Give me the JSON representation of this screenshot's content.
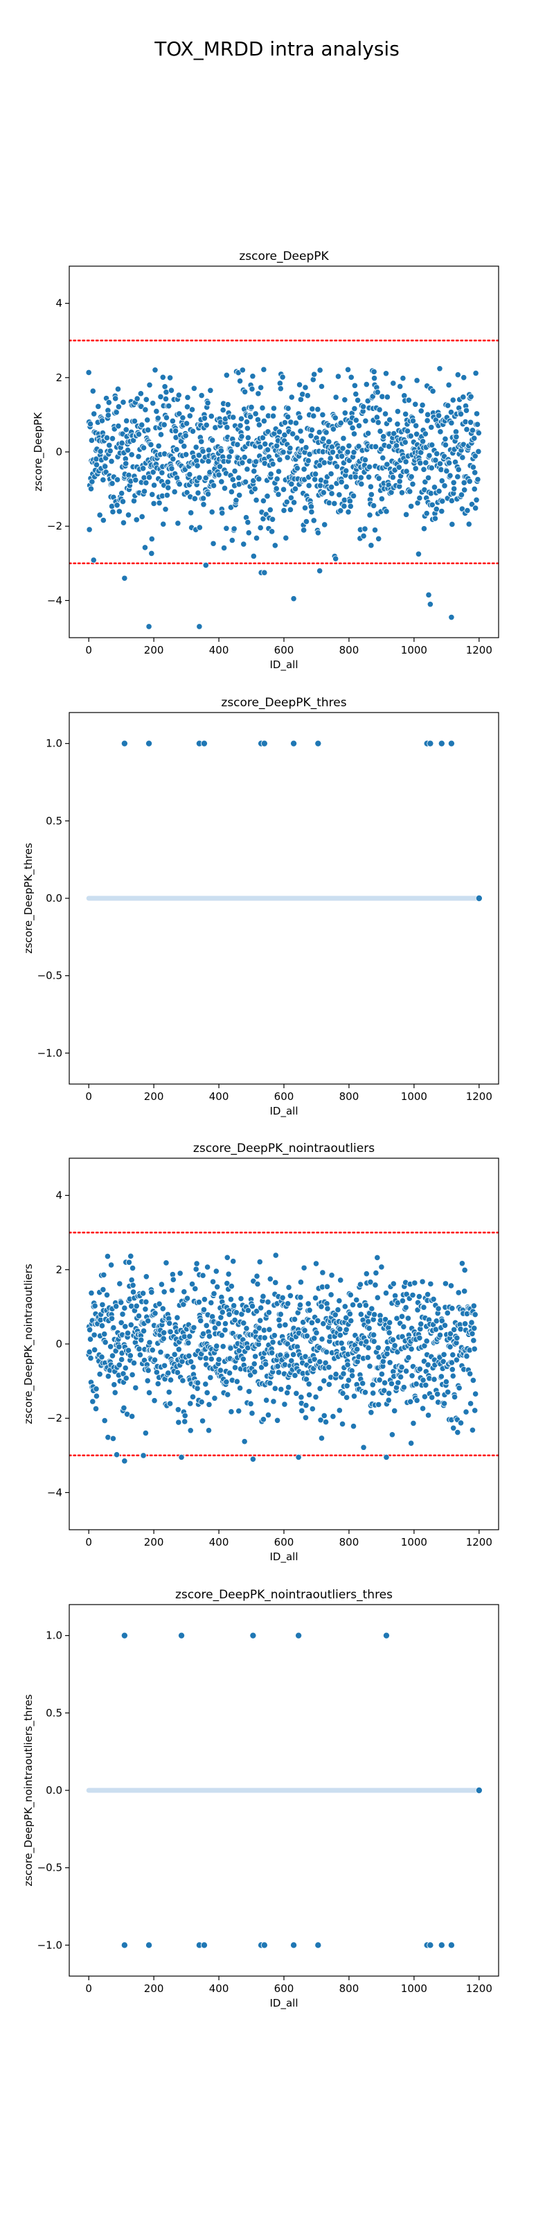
{
  "figure": {
    "suptitle": "TOX_MRDD intra analysis"
  },
  "colors": {
    "points": "#1f77b4",
    "threshold_line": "#ff0000",
    "zero_band": "#c6dbef"
  },
  "chart_data": [
    {
      "type": "scatter",
      "title": "zscore_DeepPK",
      "xlabel": "ID_all",
      "ylabel": "zscore_DeepPK",
      "xlim": [
        -60,
        1260
      ],
      "ylim": [
        -5,
        5
      ],
      "xticks": [
        0,
        200,
        400,
        600,
        800,
        1000,
        1200
      ],
      "yticks": [
        -4,
        -2,
        0,
        2,
        4
      ],
      "ytick_labels": [
        "−4",
        "−2",
        "0",
        "2",
        "4"
      ],
      "hlines": [
        3,
        -3
      ],
      "n_points": 1200,
      "distribution": {
        "center": 0,
        "spread": 1,
        "min": -3,
        "max": 2.3
      },
      "outliers": [
        {
          "x": 110,
          "y": -3.4
        },
        {
          "x": 185,
          "y": -4.7
        },
        {
          "x": 340,
          "y": -4.7
        },
        {
          "x": 360,
          "y": -3.05
        },
        {
          "x": 530,
          "y": -3.25
        },
        {
          "x": 540,
          "y": -3.25
        },
        {
          "x": 630,
          "y": -3.95
        },
        {
          "x": 710,
          "y": -3.2
        },
        {
          "x": 1045,
          "y": -3.85
        },
        {
          "x": 1050,
          "y": -4.1
        },
        {
          "x": 1115,
          "y": -4.45
        }
      ]
    },
    {
      "type": "scatter",
      "title": "zscore_DeepPK_thres",
      "xlabel": "ID_all",
      "ylabel": "zscore_DeepPK_thres",
      "xlim": [
        -60,
        1260
      ],
      "ylim": [
        -1.2,
        1.2
      ],
      "xticks": [
        0,
        200,
        400,
        600,
        800,
        1000,
        1200
      ],
      "yticks": [
        -1.0,
        -0.5,
        0.0,
        0.5,
        1.0
      ],
      "ytick_labels": [
        "−1.0",
        "−0.5",
        "0.0",
        "0.5",
        "1.0"
      ],
      "band_y": 0,
      "band_x_range": [
        0,
        1200
      ],
      "points": [
        {
          "x": 110,
          "y": 1
        },
        {
          "x": 185,
          "y": 1
        },
        {
          "x": 340,
          "y": 1
        },
        {
          "x": 355,
          "y": 1
        },
        {
          "x": 530,
          "y": 1
        },
        {
          "x": 540,
          "y": 1
        },
        {
          "x": 630,
          "y": 1
        },
        {
          "x": 705,
          "y": 1
        },
        {
          "x": 1040,
          "y": 1
        },
        {
          "x": 1050,
          "y": 1
        },
        {
          "x": 1085,
          "y": 1
        },
        {
          "x": 1115,
          "y": 1
        },
        {
          "x": 1200,
          "y": 0
        }
      ]
    },
    {
      "type": "scatter",
      "title": "zscore_DeepPK_nointraoutliers",
      "xlabel": "ID_all",
      "ylabel": "zscore_DeepPK_nointraoutliers",
      "xlim": [
        -60,
        1260
      ],
      "ylim": [
        -5,
        5
      ],
      "xticks": [
        0,
        200,
        400,
        600,
        800,
        1000,
        1200
      ],
      "yticks": [
        -4,
        -2,
        0,
        2,
        4
      ],
      "ytick_labels": [
        "−4",
        "−2",
        "0",
        "2",
        "4"
      ],
      "hlines": [
        3,
        -3
      ],
      "n_points": 1190,
      "distribution": {
        "center": 0,
        "spread": 1,
        "min": -3.1,
        "max": 2.4
      },
      "outliers": [
        {
          "x": 110,
          "y": -3.15
        },
        {
          "x": 285,
          "y": -3.05
        },
        {
          "x": 505,
          "y": -3.1
        },
        {
          "x": 645,
          "y": -3.05
        },
        {
          "x": 915,
          "y": -3.05
        }
      ]
    },
    {
      "type": "scatter",
      "title": "zscore_DeepPK_nointraoutliers_thres",
      "xlabel": "ID_all",
      "ylabel": "zscore_DeepPK_nointraoutliers_thres",
      "xlim": [
        -60,
        1260
      ],
      "ylim": [
        -1.2,
        1.2
      ],
      "xticks": [
        0,
        200,
        400,
        600,
        800,
        1000,
        1200
      ],
      "yticks": [
        -1.0,
        -0.5,
        0.0,
        0.5,
        1.0
      ],
      "ytick_labels": [
        "−1.0",
        "−0.5",
        "0.0",
        "0.5",
        "1.0"
      ],
      "band_y": 0,
      "band_x_range": [
        0,
        1200
      ],
      "points": [
        {
          "x": 110,
          "y": 1
        },
        {
          "x": 285,
          "y": 1
        },
        {
          "x": 505,
          "y": 1
        },
        {
          "x": 645,
          "y": 1
        },
        {
          "x": 915,
          "y": 1
        },
        {
          "x": 110,
          "y": -1
        },
        {
          "x": 185,
          "y": -1
        },
        {
          "x": 340,
          "y": -1
        },
        {
          "x": 355,
          "y": -1
        },
        {
          "x": 530,
          "y": -1
        },
        {
          "x": 540,
          "y": -1
        },
        {
          "x": 630,
          "y": -1
        },
        {
          "x": 705,
          "y": -1
        },
        {
          "x": 1040,
          "y": -1
        },
        {
          "x": 1050,
          "y": -1
        },
        {
          "x": 1085,
          "y": -1
        },
        {
          "x": 1115,
          "y": -1
        },
        {
          "x": 1200,
          "y": 0
        }
      ]
    }
  ]
}
